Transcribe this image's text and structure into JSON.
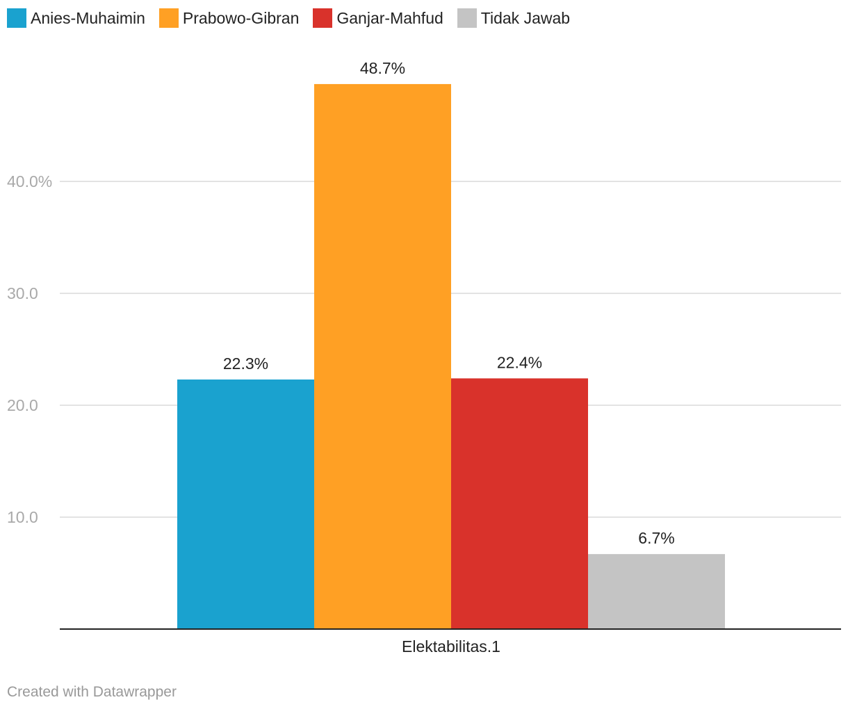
{
  "chart_data": {
    "type": "bar",
    "categories": [
      "Elektabilitas.1"
    ],
    "series": [
      {
        "name": "Anies-Muhaimin",
        "values": [
          22.3
        ],
        "label": "22.3%",
        "color": "#1aa2cf"
      },
      {
        "name": "Prabowo-Gibran",
        "values": [
          48.7
        ],
        "label": "48.7%",
        "color": "#ffa024"
      },
      {
        "name": "Ganjar-Mahfud",
        "values": [
          22.4
        ],
        "label": "22.4%",
        "color": "#d9322b"
      },
      {
        "name": "Tidak Jawab",
        "values": [
          6.7
        ],
        "label": "6.7%",
        "color": "#c4c4c4"
      }
    ],
    "ylim": [
      0,
      50
    ],
    "yticks": [
      {
        "value": 10,
        "label": "10.0"
      },
      {
        "value": 20,
        "label": "20.0"
      },
      {
        "value": 30,
        "label": "30.0"
      },
      {
        "value": 40,
        "label": "40.0%"
      }
    ],
    "legend_position": "top-left",
    "grid": true
  },
  "footer": {
    "credit": "Created with Datawrapper"
  }
}
